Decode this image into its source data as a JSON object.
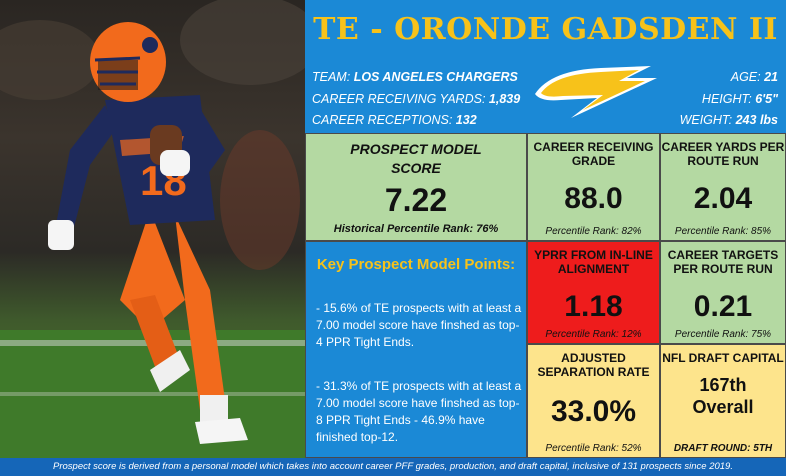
{
  "header": {
    "title": "TE - ORONDE GADSDEN II",
    "team_label": "TEAM:",
    "team_value": "LOS ANGELES CHARGERS",
    "yards_label": "CAREER RECEIVING YARDS:",
    "yards_value": "1,839",
    "receptions_label": "CAREER RECEPTIONS:",
    "receptions_value": "132",
    "age_label": "AGE:",
    "age_value": "21",
    "height_label": "HEIGHT:",
    "height_value": "6'5\"",
    "weight_label": "WEIGHT:",
    "weight_value": "243 lbs",
    "logo_icon": "chargers-bolt-icon",
    "accent_color": "#f7c21a",
    "bg_color": "#1b89d6"
  },
  "photo": {
    "jersey_number": "18",
    "icon": "player-photo"
  },
  "prospect_score": {
    "label": "PROSPECT MODEL SCORE",
    "value": "7.22",
    "rank_text": "Historical Percentile Rank: 76%"
  },
  "metrics": {
    "receiving_grade": {
      "label": "CAREER RECEIVING GRADE",
      "value": "88.0",
      "pct": "Percentile Rank: 82%"
    },
    "yprr": {
      "label": "CAREER YARDS PER ROUTE RUN",
      "value": "2.04",
      "pct": "Percentile Rank: 85%"
    },
    "inline_yprr": {
      "label": "YPRR FROM IN-LINE ALIGNMENT",
      "value": "1.18",
      "pct": "Percentile Rank: 12%"
    },
    "tprr": {
      "label": "CAREER TARGETS PER ROUTE RUN",
      "value": "0.21",
      "pct": "Percentile Rank: 75%"
    },
    "separation": {
      "label": "ADJUSTED SEPARATION RATE",
      "value": "33.0%",
      "pct": "Percentile Rank: 52%"
    },
    "draft": {
      "label": "NFL DRAFT CAPITAL",
      "value_line1": "167th",
      "value_line2": "Overall",
      "round": "DRAFT ROUND: 5TH"
    }
  },
  "notes": {
    "title": "Key Prospect Model Points:",
    "point1": "- 15.6% of TE prospects with at least a 7.00 model score have finshed as top-4 PPR Tight Ends.",
    "point2": "- 31.3% of TE prospects with at least a 7.00 model score have finshed as top-8 PPR Tight Ends - 46.9% have finished top-12."
  },
  "footer": {
    "text": "Prospect score is derived from a personal model which takes into account career PFF grades, production, and draft capital, inclusive of 131 prospects since 2019."
  }
}
